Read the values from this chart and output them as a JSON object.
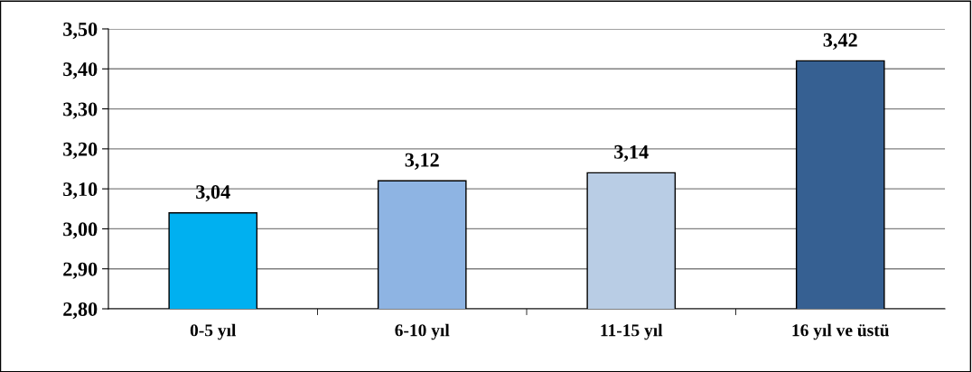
{
  "chart_data": {
    "type": "bar",
    "categories": [
      "0-5 yıl",
      "6-10 yıl",
      "11-15 yıl",
      "16 yıl ve üstü"
    ],
    "values": [
      3.04,
      3.12,
      3.14,
      3.42
    ],
    "colors": [
      "#00b0f0",
      "#8eb4e3",
      "#b9cde5",
      "#366092"
    ],
    "value_labels": [
      "3,04",
      "3,12",
      "3,14",
      "3,42"
    ],
    "ylim": [
      2.8,
      3.5
    ],
    "yticks": [
      {
        "value": 2.8,
        "label": "2,80"
      },
      {
        "value": 2.9,
        "label": "2,90"
      },
      {
        "value": 3.0,
        "label": "3,00"
      },
      {
        "value": 3.1,
        "label": "3,10"
      },
      {
        "value": 3.2,
        "label": "3,20"
      },
      {
        "value": 3.3,
        "label": "3,30"
      },
      {
        "value": 3.4,
        "label": "3,40"
      },
      {
        "value": 3.5,
        "label": "3,50"
      }
    ],
    "grid": "y",
    "legend": false
  }
}
